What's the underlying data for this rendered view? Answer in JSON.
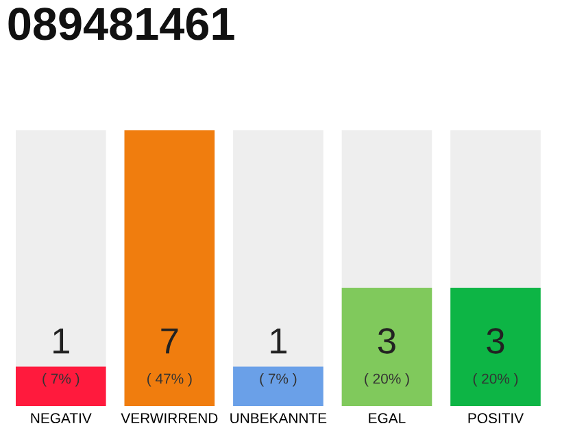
{
  "chart_data": {
    "type": "bar",
    "title": "089481461",
    "categories": [
      "NEGATIV",
      "VERWIRREND",
      "UNBEKANNTE",
      "EGAL",
      "POSITIV"
    ],
    "values": [
      1,
      7,
      1,
      3,
      3
    ],
    "colors": [
      "#ff1a3d",
      "#f07d0e",
      "#6aa0e8",
      "#80c95c",
      "#0db545"
    ],
    "data_labels": true,
    "annotations": [
      "( 7% )",
      "( 47% )",
      "( 7% )",
      "( 20% )",
      "( 20% )"
    ],
    "ylim": [
      0,
      7
    ],
    "tick_labels": "x",
    "grid": false,
    "legend": false
  }
}
